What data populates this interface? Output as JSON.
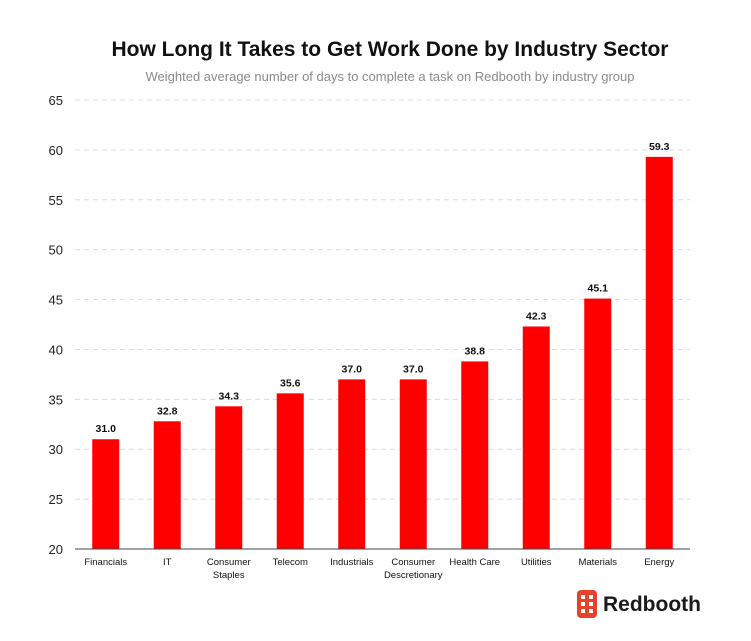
{
  "chart_data": {
    "type": "bar",
    "title": "How Long It Takes to Get Work Done by Industry Sector",
    "subtitle": "Weighted average number of days to complete a task on Redbooth by industry group",
    "xlabel": "",
    "ylabel": "",
    "categories": [
      [
        "Financials"
      ],
      [
        "IT"
      ],
      [
        "Consumer",
        "Staples"
      ],
      [
        "Telecom"
      ],
      [
        "Industrials"
      ],
      [
        "Consumer",
        "Descretionary"
      ],
      [
        "Health Care"
      ],
      [
        "Utilities"
      ],
      [
        "Materials"
      ],
      [
        "Energy"
      ]
    ],
    "values": [
      31.0,
      32.8,
      34.3,
      35.6,
      37.0,
      37.0,
      38.8,
      42.3,
      45.1,
      59.3
    ],
    "value_labels": [
      "31.0",
      "32.8",
      "34.3",
      "35.6",
      "37.0",
      "37.0",
      "38.8",
      "42.3",
      "45.1",
      "59.3"
    ],
    "ylim": [
      20,
      65
    ],
    "yticks": [
      20,
      25,
      30,
      35,
      40,
      45,
      50,
      55,
      60,
      65
    ],
    "grid": true,
    "bar_color": "#ff0000",
    "grid_color": "#dcdcdc"
  },
  "brand": {
    "name": "Redbooth",
    "icon": "building-icon",
    "color": "#e8412c"
  }
}
